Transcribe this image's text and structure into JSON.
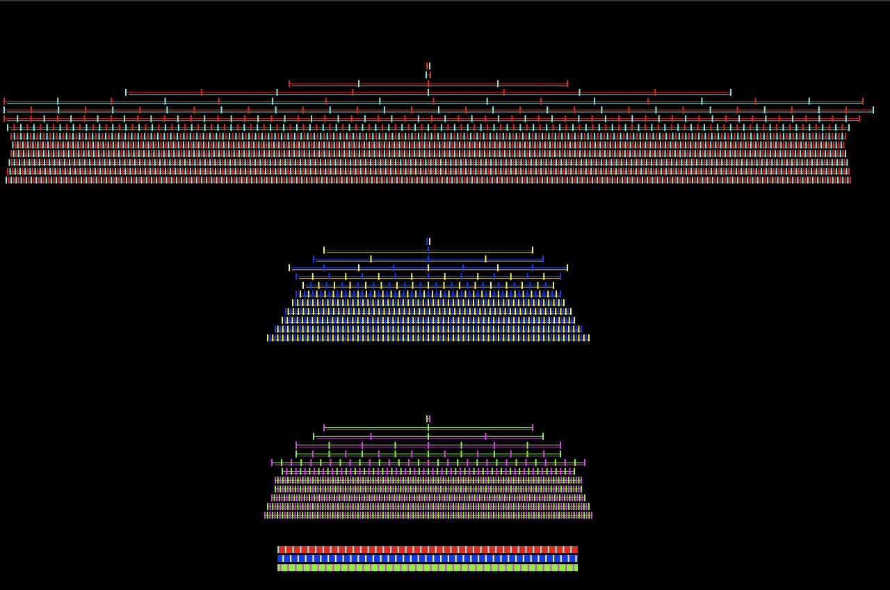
{
  "colors": {
    "background": "#000000",
    "red": "#e0281c",
    "cyan": "#7fe8e0",
    "blue": "#1438f0",
    "yellow": "#f8f04a",
    "green": "#8ef038",
    "magenta": "#e040f0",
    "topbar": "#3a3a3a"
  },
  "trees": [
    {
      "name": "tree-red-cyan",
      "palette": [
        "red",
        "cyan"
      ],
      "levels": 14
    },
    {
      "name": "tree-blue-yellow",
      "palette": [
        "blue",
        "yellow"
      ],
      "levels": 12
    },
    {
      "name": "tree-green-magenta",
      "palette": [
        "green",
        "magenta"
      ],
      "levels": 12
    }
  ],
  "strips": [
    {
      "name": "strip-red-cyan",
      "palette": [
        "red",
        "cyan"
      ]
    },
    {
      "name": "strip-blue-yellow",
      "palette": [
        "blue",
        "yellow"
      ]
    },
    {
      "name": "strip-green-magenta",
      "palette": [
        "green",
        "magenta"
      ]
    }
  ]
}
